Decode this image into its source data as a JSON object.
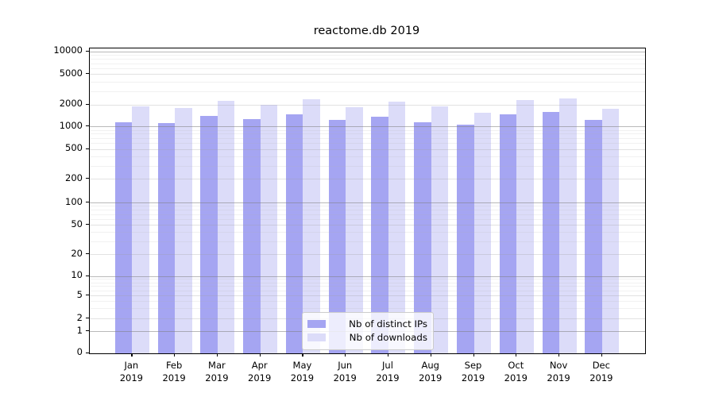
{
  "title": "reactome.db 2019",
  "legend": {
    "items": [
      {
        "label": "Nb of distinct IPs",
        "color": "#a5a5f2"
      },
      {
        "label": "Nb of downloads",
        "color": "#dcdcf9"
      }
    ]
  },
  "chart_data": {
    "type": "bar",
    "title": "reactome.db 2019",
    "categories": [
      "Jan 2019",
      "Feb 2019",
      "Mar 2019",
      "Apr 2019",
      "May 2019",
      "Jun 2019",
      "Jul 2019",
      "Aug 2019",
      "Sep 2019",
      "Oct 2019",
      "Nov 2019",
      "Dec 2019"
    ],
    "series": [
      {
        "name": "Nb of distinct IPs",
        "color": "#a5a5f2",
        "values": [
          1140,
          1120,
          1390,
          1260,
          1480,
          1220,
          1350,
          1150,
          1060,
          1480,
          1570,
          1240
        ]
      },
      {
        "name": "Nb of downloads",
        "color": "#dcdcf9",
        "values": [
          1860,
          1770,
          2250,
          2000,
          2330,
          1820,
          2180,
          1890,
          1550,
          2300,
          2420,
          1750
        ]
      }
    ],
    "yscale": "symlog",
    "yticks": [
      0,
      1,
      2,
      5,
      10,
      20,
      50,
      100,
      200,
      500,
      1000,
      2000,
      5000,
      10000
    ],
    "ylim": [
      0,
      10000
    ],
    "xlabel": "",
    "ylabel": "",
    "grid": "both-horizontal",
    "legend_position": "lower-center"
  }
}
